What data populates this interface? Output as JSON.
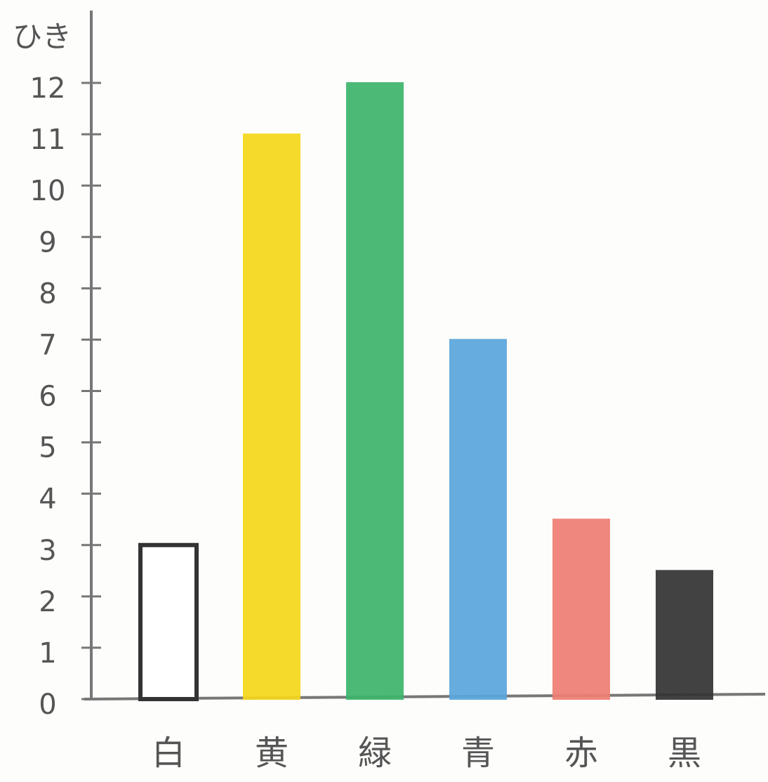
{
  "chart_data": {
    "type": "bar",
    "y_label": "ひき",
    "categories": [
      "白",
      "黄",
      "緑",
      "青",
      "赤",
      "黒"
    ],
    "values": [
      3,
      11,
      12,
      7,
      3.5,
      2.5
    ],
    "colors": [
      "#ffffff",
      "#f6d81a",
      "#3db56c",
      "#5aa6dc",
      "#ee7e72",
      "#333333"
    ],
    "ylim": [
      0,
      12
    ],
    "yticks": [
      0,
      1,
      2,
      3,
      4,
      5,
      6,
      7,
      8,
      9,
      10,
      11,
      12
    ]
  }
}
